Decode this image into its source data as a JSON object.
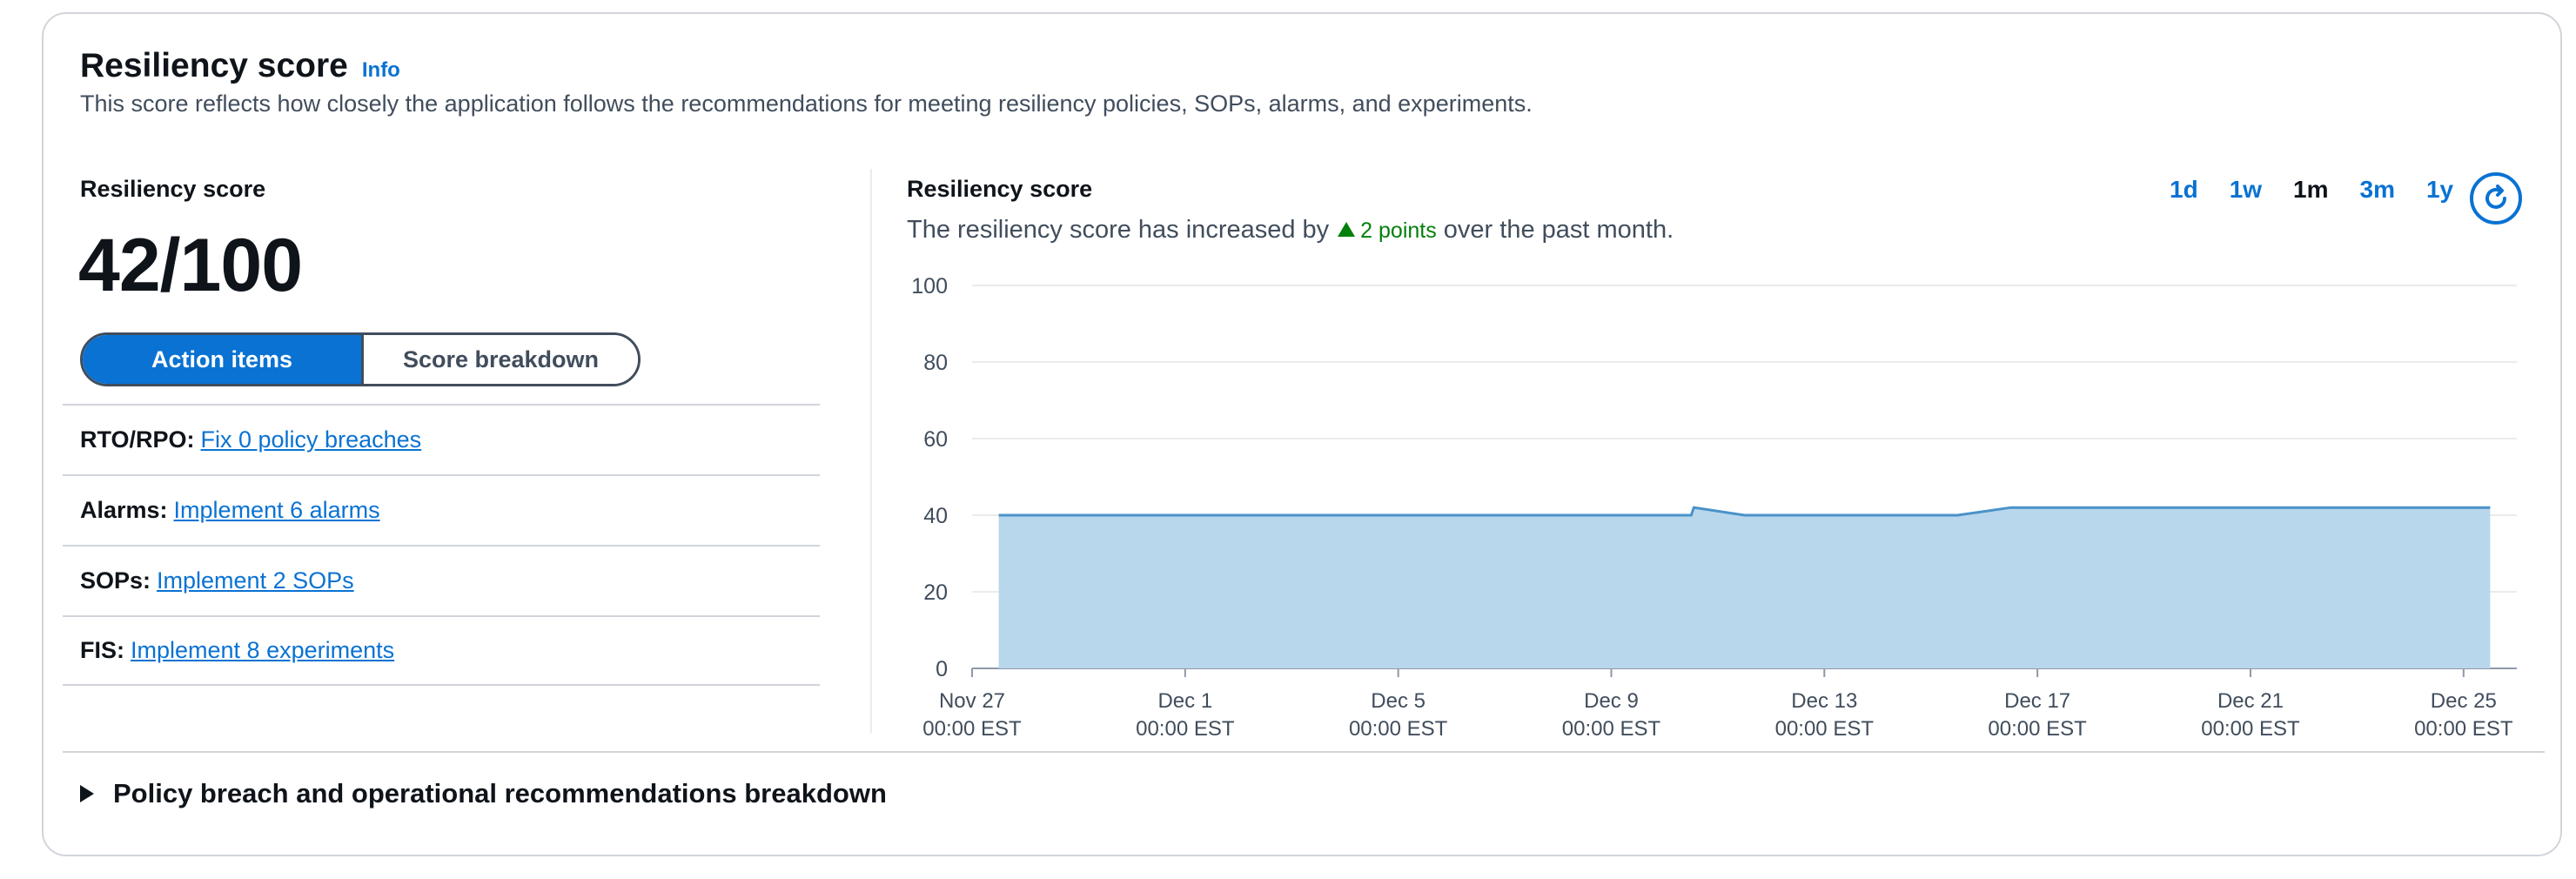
{
  "card": {
    "title": "Resiliency score",
    "info": "Info",
    "description": "This score reflects how closely the application follows the recommendations for meeting resiliency policies, SOPs, alarms, and experiments."
  },
  "score_panel": {
    "label": "Resiliency score",
    "score": "42/100",
    "tabs": {
      "action_items": "Action items",
      "score_breakdown": "Score breakdown",
      "selected": "Action items"
    },
    "items": [
      {
        "label": "RTO/RPO:",
        "link": "Fix 0 policy breaches"
      },
      {
        "label": "Alarms:",
        "link": "Implement 6 alarms"
      },
      {
        "label": "SOPs:",
        "link": "Implement 2 SOPs"
      },
      {
        "label": "FIS:",
        "link": "Implement 8 experiments"
      }
    ]
  },
  "chart_panel": {
    "title": "Resiliency score",
    "sub_prefix": "The resiliency score has increased by",
    "delta": "2 points",
    "sub_suffix": "over the past month.",
    "ranges": [
      "1d",
      "1w",
      "1m",
      "3m",
      "1y"
    ],
    "selected_range": "1m",
    "refresh_icon": "refresh-icon"
  },
  "chart_data": {
    "type": "area",
    "ylim": [
      0,
      100
    ],
    "y_ticks": [
      0,
      20,
      40,
      60,
      80,
      100
    ],
    "x_ticks": [
      {
        "line1": "Nov 27",
        "line2": "00:00 EST"
      },
      {
        "line1": "Dec 1",
        "line2": "00:00 EST"
      },
      {
        "line1": "Dec 5",
        "line2": "00:00 EST"
      },
      {
        "line1": "Dec 9",
        "line2": "00:00 EST"
      },
      {
        "line1": "Dec 13",
        "line2": "00:00 EST"
      },
      {
        "line1": "Dec 17",
        "line2": "00:00 EST"
      },
      {
        "line1": "Dec 21",
        "line2": "00:00 EST"
      },
      {
        "line1": "Dec 25",
        "line2": "00:00 EST"
      }
    ],
    "x_range_days": [
      0,
      29
    ],
    "series": [
      {
        "points": [
          [
            0.5,
            40
          ],
          [
            13.5,
            40
          ],
          [
            13.55,
            42
          ],
          [
            14.5,
            40
          ],
          [
            18.5,
            40
          ],
          [
            19.5,
            42
          ],
          [
            28.5,
            42
          ]
        ]
      }
    ],
    "colors": {
      "fill": "#b8d7ec",
      "line": "#4a92c8",
      "grid": "#e9ebed",
      "axis": "#8d99a8"
    },
    "grid": true
  },
  "footer": {
    "expander": "Policy breach and operational recommendations breakdown"
  }
}
